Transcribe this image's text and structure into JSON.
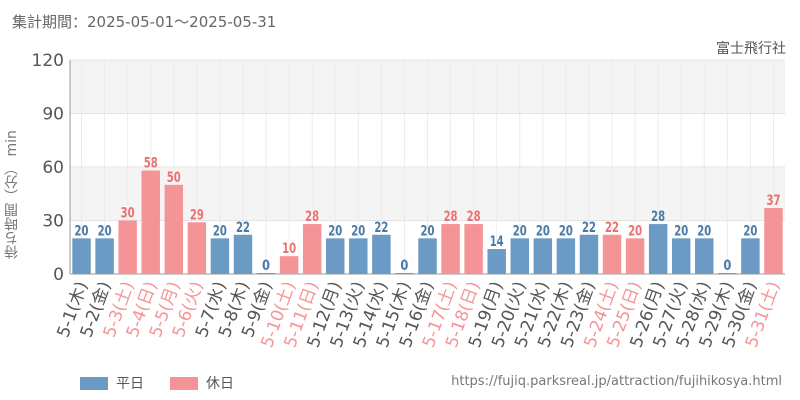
{
  "header": {
    "period": "集計期間：2025-05-01～2025-05-31",
    "attraction": "富士飛行社"
  },
  "legend": {
    "weekday_label": "平日",
    "holiday_label": "休日"
  },
  "footer": {
    "url": "https://fujiq.parksreal.jp/attraction/fujihikosya.html"
  },
  "colors": {
    "weekday": "#6b9bc4",
    "holiday": "#f59496",
    "weekday_text": "#4a7aa8",
    "holiday_text": "#ee7070",
    "grid": "#e4e4e4",
    "band": "#f4f4f4"
  },
  "chart_data": {
    "type": "bar",
    "ylabel": "待ち時間（分） min",
    "ylim": [
      0,
      120
    ],
    "yticks": [
      0,
      30,
      60,
      90,
      120
    ],
    "grid": true,
    "legend_position": "bottom-left",
    "categories": [
      "5-1(木)",
      "5-2(金)",
      "5-3(土)",
      "5-4(日)",
      "5-5(月)",
      "5-6(火)",
      "5-7(水)",
      "5-8(木)",
      "5-9(金)",
      "5-10(土)",
      "5-11(日)",
      "5-12(月)",
      "5-13(火)",
      "5-14(水)",
      "5-15(木)",
      "5-16(金)",
      "5-17(土)",
      "5-18(日)",
      "5-19(月)",
      "5-20(火)",
      "5-21(水)",
      "5-22(木)",
      "5-23(金)",
      "5-24(土)",
      "5-25(日)",
      "5-26(月)",
      "5-27(火)",
      "5-28(水)",
      "5-29(木)",
      "5-30(金)",
      "5-31(土)"
    ],
    "values": [
      20,
      20,
      30,
      58,
      50,
      29,
      20,
      22,
      0,
      10,
      28,
      20,
      20,
      22,
      0,
      20,
      28,
      28,
      14,
      20,
      20,
      20,
      22,
      22,
      20,
      28,
      20,
      20,
      0,
      20,
      37
    ],
    "day_type": [
      "weekday",
      "weekday",
      "holiday",
      "holiday",
      "holiday",
      "holiday",
      "weekday",
      "weekday",
      "weekday",
      "holiday",
      "holiday",
      "weekday",
      "weekday",
      "weekday",
      "weekday",
      "weekday",
      "holiday",
      "holiday",
      "weekday",
      "weekday",
      "weekday",
      "weekday",
      "weekday",
      "holiday",
      "holiday",
      "weekday",
      "weekday",
      "weekday",
      "weekday",
      "weekday",
      "holiday"
    ]
  }
}
